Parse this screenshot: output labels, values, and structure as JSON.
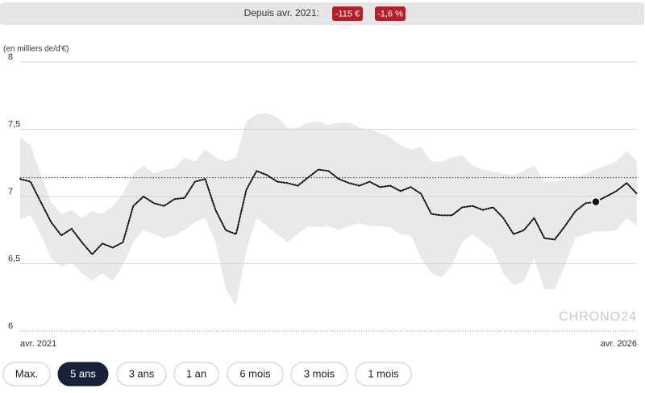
{
  "summary": {
    "label": "Depuis avr. 2021:",
    "badges": [
      "-115 €",
      "-1,6 %"
    ]
  },
  "controls": {
    "buttons": [
      "Max.",
      "5 ans",
      "3 ans",
      "1 an",
      "6 mois",
      "3 mois",
      "1 mois"
    ],
    "active": 1
  },
  "chart_data": {
    "type": "line",
    "y_label": "(en milliers de/d'€)",
    "watermark": "CHRONO24",
    "categories": [
      "avr. 2021",
      null,
      null,
      null,
      null,
      null,
      null,
      null,
      null,
      null,
      null,
      null,
      null,
      null,
      null,
      null,
      null,
      null,
      null,
      null,
      null,
      null,
      null,
      null,
      null,
      null,
      null,
      null,
      null,
      null,
      null,
      null,
      null,
      null,
      null,
      null,
      null,
      null,
      null,
      null,
      null,
      null,
      null,
      null,
      null,
      null,
      null,
      null,
      null,
      null,
      null,
      null,
      null,
      null,
      null,
      null,
      null,
      null,
      null,
      null,
      "avr. 2026"
    ],
    "values": [
      7.13,
      7.11,
      6.96,
      6.81,
      6.71,
      6.76,
      6.66,
      6.57,
      6.65,
      6.62,
      6.66,
      6.93,
      7.0,
      6.95,
      6.93,
      6.98,
      6.99,
      7.11,
      7.13,
      6.9,
      6.75,
      6.72,
      7.05,
      7.19,
      7.16,
      7.11,
      7.1,
      7.08,
      7.14,
      7.2,
      7.19,
      7.13,
      7.1,
      7.08,
      7.11,
      7.07,
      7.08,
      7.04,
      7.07,
      7.02,
      6.87,
      6.86,
      6.86,
      6.92,
      6.93,
      6.9,
      6.92,
      6.84,
      6.72,
      6.75,
      6.84,
      6.69,
      6.68,
      6.78,
      6.89,
      6.95,
      6.96,
      7.0,
      7.04,
      7.1,
      7.02
    ],
    "band_high": [
      7.44,
      7.38,
      7.17,
      6.96,
      6.87,
      6.9,
      6.84,
      6.89,
      6.87,
      6.93,
      7.02,
      7.17,
      7.23,
      7.17,
      7.2,
      7.21,
      7.29,
      7.26,
      7.35,
      7.29,
      7.26,
      7.29,
      7.56,
      7.61,
      7.62,
      7.59,
      7.51,
      7.51,
      7.55,
      7.56,
      7.53,
      7.55,
      7.55,
      7.51,
      7.5,
      7.47,
      7.44,
      7.38,
      7.35,
      7.37,
      7.26,
      7.26,
      7.29,
      7.31,
      7.23,
      7.2,
      7.19,
      7.17,
      7.16,
      7.19,
      7.23,
      7.11,
      7.11,
      7.13,
      7.14,
      7.17,
      7.2,
      7.23,
      7.26,
      7.34,
      7.26
    ],
    "band_low": [
      6.83,
      6.86,
      6.72,
      6.54,
      6.48,
      6.51,
      6.43,
      6.37,
      6.43,
      6.37,
      6.49,
      6.66,
      6.75,
      6.72,
      6.69,
      6.71,
      6.75,
      6.81,
      6.84,
      6.66,
      6.31,
      6.19,
      6.6,
      6.84,
      6.78,
      6.72,
      6.66,
      6.72,
      6.78,
      6.77,
      6.78,
      6.75,
      6.78,
      6.8,
      6.78,
      6.78,
      6.77,
      6.72,
      6.71,
      6.54,
      6.43,
      6.4,
      6.49,
      6.66,
      6.72,
      6.66,
      6.6,
      6.43,
      6.34,
      6.37,
      6.54,
      6.31,
      6.31,
      6.49,
      6.69,
      6.72,
      6.74,
      6.74,
      6.75,
      6.84,
      6.78
    ],
    "reference": 7.14,
    "marker_index": 56,
    "color": "#111111",
    "band_color": "#e9e9e9",
    "ylim": [
      6,
      8
    ],
    "yticks": [
      6,
      {
        "value": 6.5,
        "label": "6,5"
      },
      7,
      {
        "value": 7.5,
        "label": "7,5"
      },
      8
    ],
    "grid": true
  }
}
